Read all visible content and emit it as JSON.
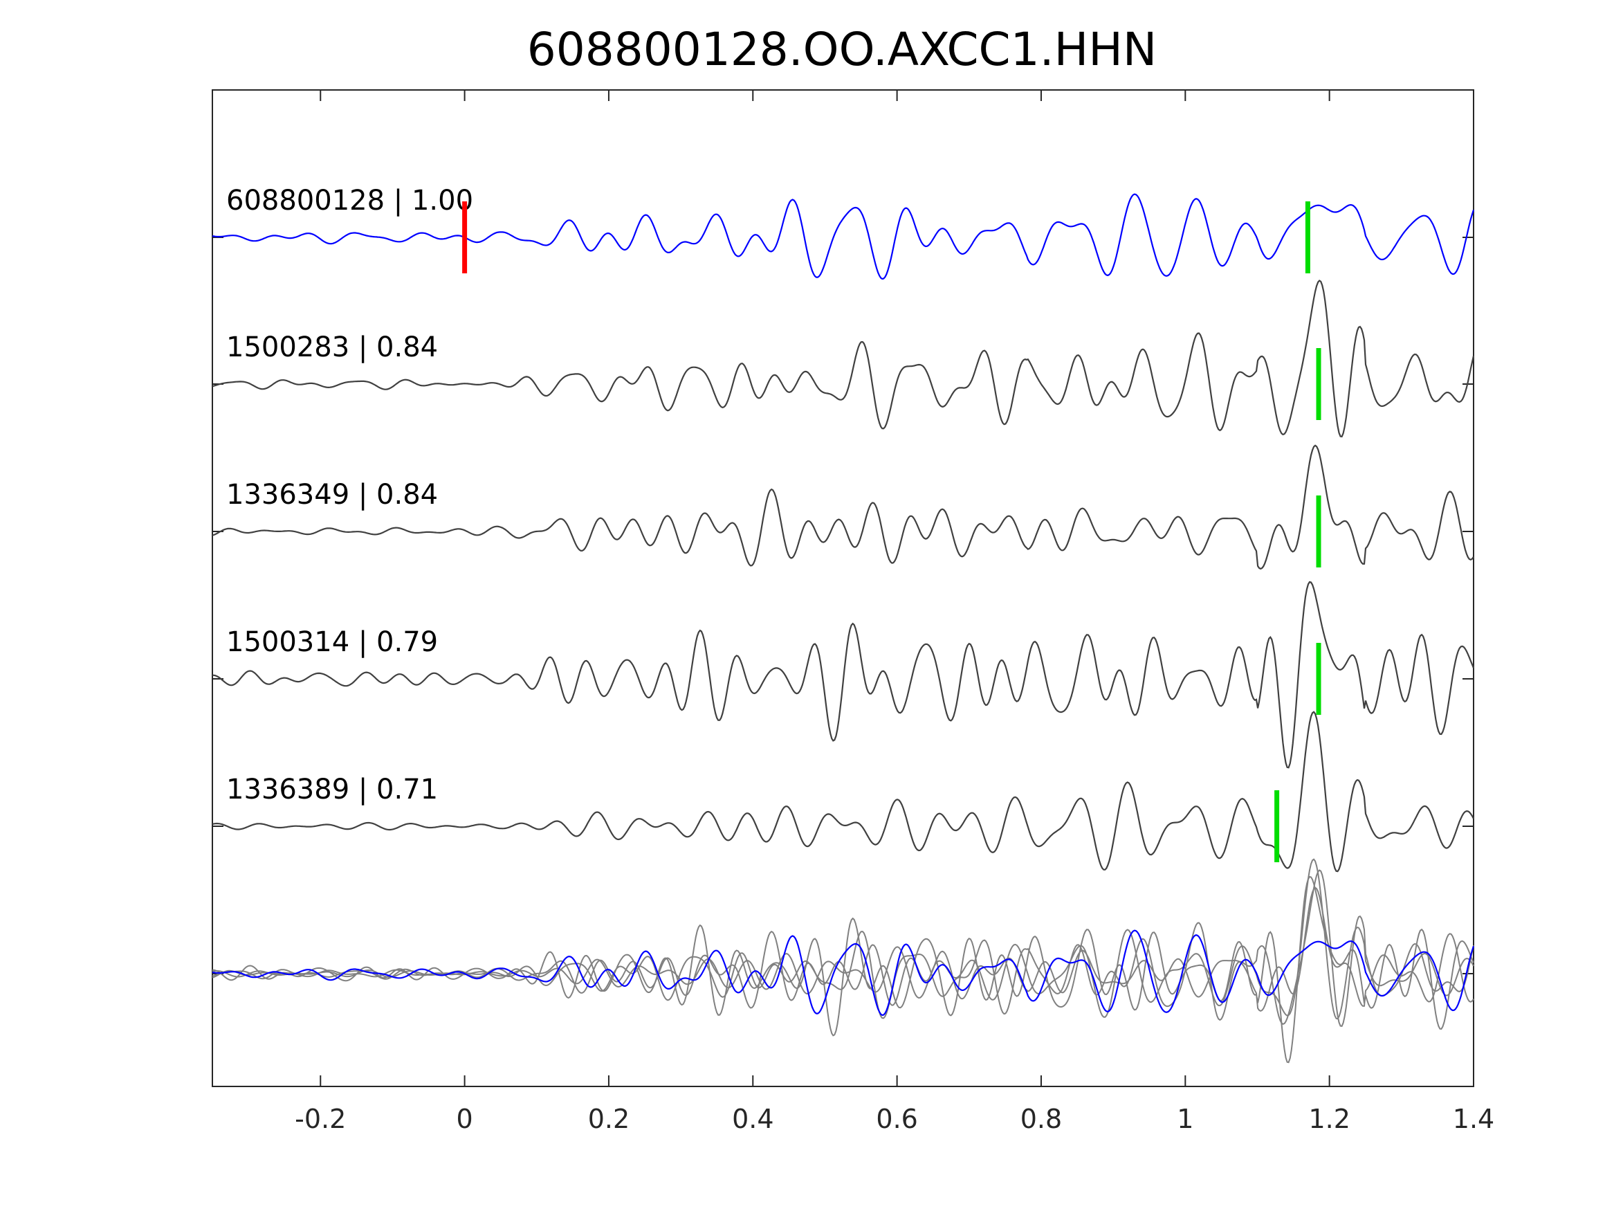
{
  "chart_data": {
    "type": "line",
    "title": "608800128.OO.AXCC1.HHN",
    "xlabel": "",
    "ylabel": "",
    "xlim": [
      -0.35,
      1.4
    ],
    "xticks": [
      -0.2,
      0,
      0.2,
      0.4,
      0.6,
      0.8,
      1,
      1.2,
      1.4
    ],
    "xtick_labels": [
      "-0.2",
      "0",
      "0.2",
      "0.4",
      "0.6",
      "0.8",
      "1",
      "1.2",
      "1.4"
    ],
    "grid": false,
    "legend": "none",
    "colors": {
      "template": "#0000ff",
      "match": "#404040",
      "overlay_match": "#808080",
      "origin_marker": "#ff0000",
      "pick_marker": "#00dd00"
    },
    "traces": [
      {
        "label": "608800128 | 1.00",
        "id": "608800128",
        "cc": "1.00",
        "color": "#0000ff",
        "origin_marker_x": 0.0,
        "pick_marker_x": 1.17,
        "seed": 11
      },
      {
        "label": "1500283 | 0.84",
        "id": "1500283",
        "cc": "0.84",
        "color": "#404040",
        "pick_marker_x": 1.185,
        "seed": 23
      },
      {
        "label": "1336349 | 0.84",
        "id": "1336349",
        "cc": "0.84",
        "color": "#404040",
        "pick_marker_x": 1.185,
        "seed": 37
      },
      {
        "label": "1500314 | 0.79",
        "id": "1500314",
        "cc": "0.79",
        "color": "#404040",
        "pick_marker_x": 1.185,
        "seed": 41
      },
      {
        "label": "1336389 | 0.71",
        "id": "1336389",
        "cc": "0.71",
        "color": "#404040",
        "pick_marker_x": 1.127,
        "seed": 53
      }
    ],
    "overlay": {
      "template_color": "#0000ff",
      "match_color": "#808080"
    }
  }
}
